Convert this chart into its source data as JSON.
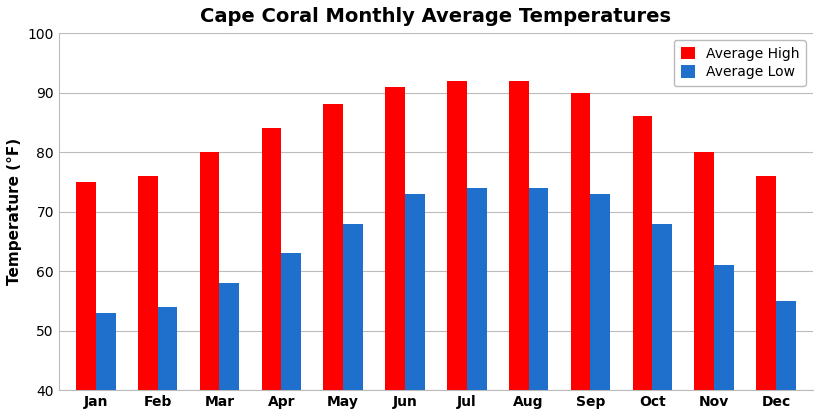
{
  "title": "Cape Coral Monthly Average Temperatures",
  "ylabel": "Temperature (°F)",
  "months": [
    "Jan",
    "Feb",
    "Mar",
    "Apr",
    "May",
    "Jun",
    "Jul",
    "Aug",
    "Sep",
    "Oct",
    "Nov",
    "Dec"
  ],
  "avg_high": [
    75,
    76,
    80,
    84,
    88,
    91,
    92,
    92,
    90,
    86,
    80,
    76
  ],
  "avg_low": [
    53,
    54,
    58,
    63,
    68,
    73,
    74,
    74,
    73,
    68,
    61,
    55
  ],
  "high_color": "#FF0000",
  "low_color": "#1F6FCC",
  "ylim": [
    40,
    100
  ],
  "yticks": [
    40,
    50,
    60,
    70,
    80,
    90,
    100
  ],
  "legend_high": "Average High",
  "legend_low": "Average Low",
  "title_fontsize": 14,
  "axis_label_fontsize": 11,
  "tick_fontsize": 10,
  "legend_fontsize": 10,
  "bar_width": 0.32,
  "background_color": "#FFFFFF",
  "grid_color": "#BBBBBB"
}
